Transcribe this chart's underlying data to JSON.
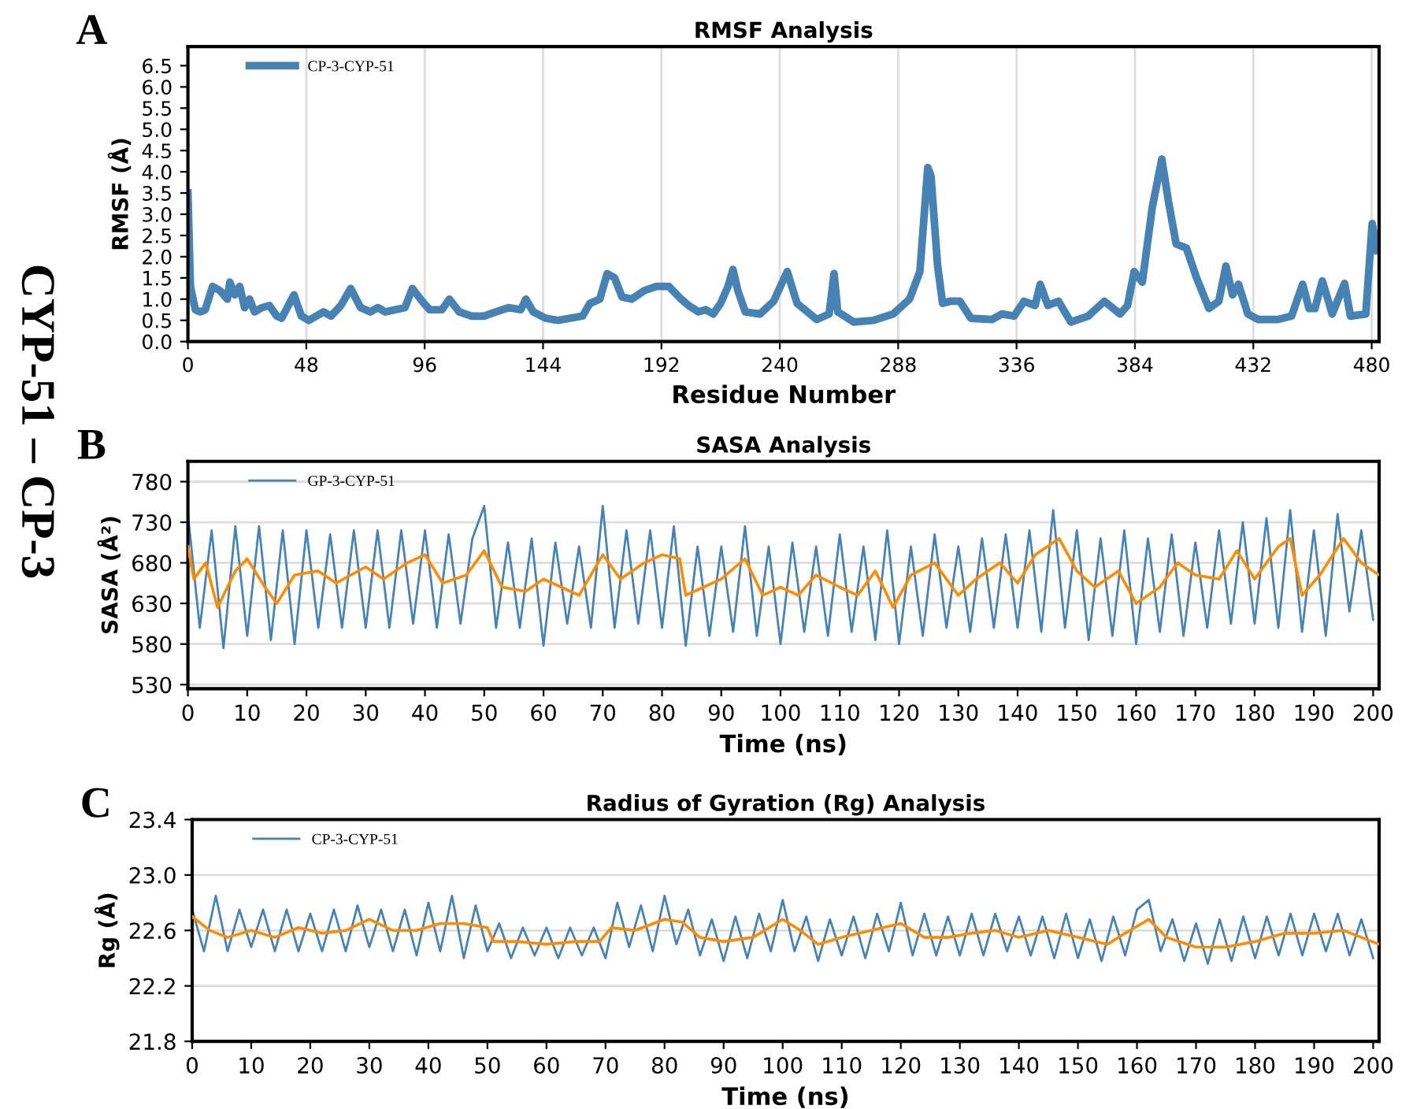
{
  "chart_data": [
    {
      "type": "line",
      "title": "RMSF Analysis",
      "xlabel": "Residue Number",
      "ylabel": "RMSF (Å)",
      "annotations": [
        "A",
        "CYP-51 – CP-3"
      ],
      "xlim": [
        0,
        483
      ],
      "xticks": [
        0,
        48,
        96,
        144,
        192,
        240,
        288,
        336,
        384,
        432,
        480
      ],
      "ylim": [
        0,
        6.95
      ],
      "yticks": [
        {
          "value": 0,
          "label": "0.0"
        },
        {
          "value": 0.5,
          "label": "0.5"
        },
        {
          "value": 1,
          "label": "1.0"
        },
        {
          "value": 1.5,
          "label": "1.5"
        },
        {
          "value": 2,
          "label": "2.0"
        },
        {
          "value": 2.5,
          "label": "2.5"
        },
        {
          "value": 3,
          "label": "3.0"
        },
        {
          "value": 3.5,
          "label": "3.5"
        },
        {
          "value": 4,
          "label": "4.0"
        },
        {
          "value": 4.5,
          "label": "4.5"
        },
        {
          "value": 5,
          "label": "5.0"
        },
        {
          "value": 5.5,
          "label": "5.5"
        },
        {
          "value": 6,
          "label": "6.0"
        },
        {
          "value": 6.5,
          "label": "6.5"
        }
      ],
      "grid": "x",
      "legend": "top left",
      "series": [
        {
          "name": "CP-3-CYP-51",
          "color": "#4682b4",
          "x": [
            0,
            1,
            3,
            5,
            7,
            10,
            13,
            16,
            17,
            19,
            21,
            23,
            25,
            27,
            30,
            33,
            36,
            38,
            43,
            46,
            49,
            55,
            58,
            62,
            66,
            70,
            74,
            77,
            80,
            84,
            88,
            91,
            95,
            98,
            103,
            106,
            110,
            115,
            120,
            125,
            130,
            135,
            137,
            140,
            145,
            150,
            155,
            160,
            163,
            167,
            170,
            173,
            176,
            180,
            185,
            190,
            195,
            200,
            203,
            207,
            210,
            213,
            216,
            219,
            221,
            223,
            226,
            232,
            237.5,
            243,
            247,
            255,
            260,
            262,
            263.5,
            270,
            278,
            286,
            292.6,
            296.8,
            300,
            301.3,
            304,
            306,
            309,
            313,
            317.5,
            326,
            330,
            335,
            339,
            343.5,
            345.6,
            348.7,
            353,
            358,
            365,
            371.6,
            378,
            381,
            383.7,
            387,
            391,
            394.9,
            397.6,
            400.7,
            404.9,
            409,
            414,
            418,
            420.9,
            423.6,
            426,
            429.8,
            434,
            442,
            447.5,
            452,
            454.6,
            457,
            460,
            464,
            469,
            471.4,
            477.6,
            480.2,
            482.3
          ],
          "values": [
            3.5,
            1.3,
            0.75,
            0.7,
            0.75,
            1.3,
            1.2,
            1.0,
            1.4,
            1.1,
            1.3,
            0.8,
            1.0,
            0.7,
            0.8,
            0.85,
            0.6,
            0.55,
            1.1,
            0.6,
            0.5,
            0.7,
            0.6,
            0.85,
            1.25,
            0.8,
            0.7,
            0.8,
            0.7,
            0.75,
            0.8,
            1.25,
            0.95,
            0.75,
            0.75,
            1.0,
            0.7,
            0.6,
            0.6,
            0.7,
            0.8,
            0.75,
            1.0,
            0.7,
            0.55,
            0.5,
            0.55,
            0.6,
            0.9,
            1.0,
            1.6,
            1.5,
            1.05,
            1.0,
            1.2,
            1.3,
            1.3,
            1.0,
            0.85,
            0.7,
            0.75,
            0.65,
            0.9,
            1.3,
            1.7,
            1.2,
            0.7,
            0.65,
            0.95,
            1.65,
            0.9,
            0.52,
            0.65,
            1.6,
            0.7,
            0.46,
            0.5,
            0.65,
            1.0,
            1.65,
            4.1,
            3.9,
            1.78,
            0.9,
            0.95,
            0.95,
            0.55,
            0.52,
            0.65,
            0.6,
            0.95,
            0.85,
            1.35,
            0.85,
            0.95,
            0.46,
            0.6,
            0.95,
            0.65,
            0.85,
            1.65,
            1.4,
            3.15,
            4.3,
            3.3,
            2.3,
            2.2,
            1.5,
            0.78,
            0.95,
            1.78,
            1.1,
            1.35,
            0.65,
            0.52,
            0.52,
            0.6,
            1.35,
            0.78,
            0.78,
            1.43,
            0.65,
            1.37,
            0.6,
            0.65,
            2.78,
            2.15
          ]
        }
      ]
    },
    {
      "type": "line",
      "title": "SASA Analysis",
      "xlabel": "Time (ns)",
      "ylabel": "SASA (Å²)",
      "annotations": [
        "B"
      ],
      "xlim": [
        0,
        201
      ],
      "xticks": [
        0,
        10,
        20,
        30,
        40,
        50,
        60,
        70,
        80,
        90,
        100,
        110,
        120,
        130,
        140,
        150,
        160,
        170,
        180,
        190,
        200
      ],
      "ylim": [
        525,
        805
      ],
      "yticks": [
        530,
        580,
        630,
        680,
        730,
        780
      ],
      "grid": "y",
      "legend": "top left",
      "series": [
        {
          "name": "GP-3-CYP-51",
          "color": "#4682b4",
          "x": [
            0,
            2,
            4,
            6,
            8,
            10,
            12,
            14,
            16,
            18,
            20,
            22,
            24,
            26,
            28,
            30,
            32,
            34,
            36,
            38,
            40,
            42,
            44,
            46,
            48,
            50,
            52,
            54,
            56,
            58,
            60,
            62,
            64,
            66,
            68,
            70,
            72,
            74,
            76,
            78,
            80,
            82,
            84,
            86,
            88,
            90,
            92,
            94,
            96,
            98,
            100,
            102,
            104,
            106,
            108,
            110,
            112,
            114,
            116,
            118,
            120,
            122,
            124,
            126,
            128,
            130,
            132,
            134,
            136,
            138,
            140,
            142,
            144,
            146,
            148,
            150,
            152,
            154,
            156,
            158,
            160,
            162,
            164,
            166,
            168,
            170,
            172,
            174,
            176,
            178,
            180,
            182,
            184,
            186,
            188,
            190,
            192,
            194,
            196,
            198,
            200
          ],
          "values": [
            740,
            600,
            720,
            575,
            725,
            590,
            725,
            585,
            720,
            580,
            720,
            600,
            715,
            600,
            720,
            600,
            720,
            600,
            720,
            605,
            720,
            600,
            715,
            605,
            710,
            750,
            600,
            705,
            600,
            710,
            578,
            705,
            605,
            700,
            600,
            750,
            600,
            720,
            605,
            720,
            600,
            725,
            578,
            700,
            590,
            700,
            595,
            725,
            590,
            700,
            580,
            705,
            595,
            700,
            590,
            715,
            595,
            700,
            585,
            720,
            580,
            700,
            590,
            715,
            600,
            700,
            595,
            710,
            600,
            715,
            600,
            720,
            595,
            745,
            600,
            720,
            585,
            710,
            590,
            720,
            580,
            710,
            595,
            715,
            590,
            705,
            600,
            720,
            605,
            730,
            605,
            735,
            600,
            745,
            595,
            720,
            590,
            740,
            620,
            720,
            610
          ]
        },
        {
          "color": "#ff8c00",
          "x": [
            0,
            1,
            3,
            5,
            8,
            10,
            13,
            15,
            18,
            22,
            25,
            30,
            33,
            37,
            40,
            43,
            47,
            50,
            53,
            57,
            60,
            63,
            66,
            70,
            73,
            77,
            80,
            83,
            84,
            87,
            90,
            94,
            97,
            100,
            103,
            106,
            110,
            113,
            116,
            119,
            122,
            126,
            130,
            133,
            137,
            140,
            143,
            147,
            150,
            153,
            157,
            160,
            164,
            167,
            170,
            174,
            177,
            180,
            184,
            186,
            188,
            191,
            195,
            198,
            201
          ],
          "values": [
            700,
            660,
            680,
            625,
            670,
            685,
            650,
            630,
            665,
            670,
            655,
            675,
            660,
            680,
            690,
            655,
            665,
            695,
            650,
            645,
            660,
            650,
            640,
            690,
            660,
            680,
            690,
            685,
            640,
            650,
            660,
            685,
            640,
            650,
            640,
            665,
            650,
            640,
            670,
            625,
            665,
            680,
            640,
            660,
            680,
            655,
            690,
            710,
            670,
            650,
            670,
            630,
            650,
            680,
            665,
            660,
            695,
            660,
            700,
            710,
            640,
            665,
            710,
            680,
            665
          ]
        }
      ]
    },
    {
      "type": "line",
      "title": "Radius of Gyration (Rg) Analysis",
      "xlabel": "Time (ns)",
      "ylabel": "Rg (Å)",
      "annotations": [
        "C"
      ],
      "xlim": [
        0,
        201
      ],
      "xticks": [
        0,
        10,
        20,
        30,
        40,
        50,
        60,
        70,
        80,
        90,
        100,
        110,
        120,
        130,
        140,
        150,
        160,
        170,
        180,
        190,
        200
      ],
      "ylim": [
        21.8,
        23.4
      ],
      "yticks": [
        21.8,
        22.2,
        22.6,
        {
          "value": 23.0,
          "label": "23.0"
        },
        23.4
      ],
      "grid": "y",
      "legend": "top left",
      "series": [
        {
          "name": "CP-3-CYP-51",
          "color": "#4682b4",
          "x": [
            0,
            2,
            4,
            6,
            8,
            10,
            12,
            14,
            16,
            18,
            20,
            22,
            24,
            26,
            28,
            30,
            32,
            34,
            36,
            38,
            40,
            42,
            44,
            46,
            48,
            50,
            52,
            54,
            56,
            58,
            60,
            62,
            64,
            66,
            68,
            70,
            72,
            74,
            76,
            78,
            80,
            82,
            84,
            86,
            88,
            90,
            92,
            94,
            96,
            98,
            100,
            102,
            104,
            106,
            108,
            110,
            112,
            114,
            116,
            118,
            120,
            122,
            124,
            126,
            128,
            130,
            132,
            134,
            136,
            138,
            140,
            142,
            144,
            146,
            148,
            150,
            152,
            154,
            156,
            158,
            160,
            162,
            164,
            166,
            168,
            170,
            172,
            174,
            176,
            178,
            180,
            182,
            184,
            186,
            188,
            190,
            192,
            194,
            196,
            198,
            200
          ],
          "values": [
            22.75,
            22.45,
            22.85,
            22.45,
            22.75,
            22.48,
            22.75,
            22.45,
            22.75,
            22.45,
            22.72,
            22.45,
            22.75,
            22.45,
            22.78,
            22.48,
            22.75,
            22.45,
            22.75,
            22.42,
            22.8,
            22.45,
            22.85,
            22.4,
            22.78,
            22.45,
            22.65,
            22.4,
            22.62,
            22.42,
            22.62,
            22.4,
            22.62,
            22.42,
            22.62,
            22.4,
            22.8,
            22.48,
            22.78,
            22.45,
            22.85,
            22.5,
            22.75,
            22.42,
            22.68,
            22.38,
            22.7,
            22.4,
            22.72,
            22.45,
            22.82,
            22.45,
            22.7,
            22.38,
            22.68,
            22.42,
            22.7,
            22.4,
            22.72,
            22.45,
            22.8,
            22.42,
            22.72,
            22.42,
            22.7,
            22.42,
            22.72,
            22.42,
            22.72,
            22.45,
            22.7,
            22.42,
            22.7,
            22.4,
            22.72,
            22.4,
            22.68,
            22.38,
            22.7,
            22.42,
            22.75,
            22.82,
            22.45,
            22.68,
            22.38,
            22.65,
            22.36,
            22.68,
            22.38,
            22.7,
            22.4,
            22.7,
            22.42,
            22.72,
            22.42,
            22.72,
            22.45,
            22.72,
            22.42,
            22.68,
            22.4
          ]
        },
        {
          "color": "#ff8c00",
          "x": [
            0,
            3,
            6,
            10,
            14,
            18,
            22,
            26,
            30,
            34,
            38,
            42,
            46,
            50,
            51,
            55,
            60,
            65,
            69,
            71,
            75,
            80,
            83,
            86,
            90,
            95,
            100,
            103,
            106,
            110,
            115,
            120,
            124,
            128,
            132,
            136,
            140,
            145,
            150,
            155,
            158,
            162,
            165,
            170,
            175,
            180,
            185,
            190,
            195,
            198,
            201
          ],
          "values": [
            22.7,
            22.6,
            22.55,
            22.6,
            22.55,
            22.62,
            22.58,
            22.6,
            22.68,
            22.6,
            22.6,
            22.65,
            22.65,
            22.62,
            22.52,
            22.52,
            22.5,
            22.52,
            22.52,
            22.62,
            22.6,
            22.68,
            22.66,
            22.55,
            22.52,
            22.55,
            22.68,
            22.6,
            22.5,
            22.55,
            22.6,
            22.65,
            22.55,
            22.55,
            22.58,
            22.6,
            22.55,
            22.6,
            22.55,
            22.5,
            22.58,
            22.68,
            22.55,
            22.48,
            22.48,
            22.52,
            22.58,
            22.58,
            22.6,
            22.55,
            22.5
          ]
        }
      ]
    }
  ]
}
